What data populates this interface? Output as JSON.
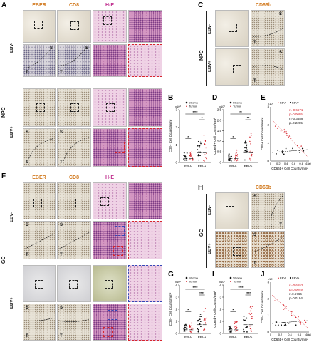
{
  "panels": {
    "A": {
      "letter": "A",
      "stains": [
        "EBER",
        "CD8",
        "H-E"
      ],
      "group": "NPC",
      "rows": [
        "EBV-",
        "EBV+"
      ]
    },
    "B": {
      "letter": "B",
      "ylabel": "CD8+ Cell Counts/mm²",
      "yexp": "x10³",
      "yticks": [
        "0",
        "1",
        "2",
        "3"
      ],
      "xcats": [
        "EBV-",
        "EBV+"
      ],
      "legend": [
        "Stroma",
        "Tumor"
      ],
      "sig": [
        "*",
        "****",
        "*"
      ]
    },
    "C": {
      "letter": "C",
      "stain": "CD66b",
      "group": "NPC",
      "rows": [
        "EBV-",
        "EBV+"
      ]
    },
    "D": {
      "letter": "D",
      "ylabel": "CD66b+ Cell Counts/mm²",
      "yexp": "x10²",
      "yticks": [
        "0",
        "0.5",
        "1.0",
        "1.5",
        "2.0",
        "2.5"
      ],
      "xcats": [
        "EBV-",
        "EBV+"
      ],
      "legend": [
        "Stroma",
        "Tumor"
      ],
      "sig": [
        "*",
        "**",
        "**"
      ]
    },
    "E": {
      "letter": "E",
      "ylabel": "CD8+ Cell Counts/mm²",
      "xlabel": "CD66b+ Cell Counts/mm²",
      "yexp": "x10³",
      "xexp": "x10²",
      "legend": [
        "EBV-",
        "EBV+"
      ],
      "yticks": [
        "0",
        "1",
        "2",
        "3"
      ],
      "xticks": [
        "0",
        "0.2",
        "0.4",
        "0.6",
        "0.8",
        "1.0"
      ],
      "stats": [
        {
          "text": "r=-0.6671",
          "color": "#d7262e"
        },
        {
          "text": "p=0.0095",
          "color": "#d7262e"
        },
        {
          "text": "r=-0.3589",
          "color": "#111111"
        },
        {
          "text": "p=0.2285",
          "color": "#111111"
        }
      ]
    },
    "F": {
      "letter": "F",
      "stains": [
        "EBER",
        "CD8",
        "H-E"
      ],
      "group": "GC",
      "rows": [
        "EBV-",
        "EBV+"
      ]
    },
    "G": {
      "letter": "G",
      "ylabel": "CD8+ Cell Counts/mm²",
      "yexp": "x10³",
      "yticks": [
        "0",
        "1",
        "2",
        "3",
        "4"
      ],
      "xcats": [
        "EBV-",
        "EBV+"
      ],
      "legend": [
        "Stroma",
        "Tumor"
      ],
      "sig": [
        "*",
        "****",
        "****"
      ]
    },
    "H": {
      "letter": "H",
      "stain": "CD66b",
      "group": "GC",
      "rows": [
        "EBV-",
        "EBV+"
      ]
    },
    "I": {
      "letter": "I",
      "ylabel": "CD66b+ Cell Counts/mm²",
      "yexp": "x10²",
      "yticks": [
        "0",
        "1",
        "2",
        "3",
        "4"
      ],
      "xcats": [
        "EBV-",
        "EBV+"
      ],
      "legend": [
        "Stroma",
        "Tumor"
      ],
      "sig": [
        "*",
        "****",
        "****"
      ]
    },
    "J": {
      "letter": "J",
      "ylabel": "CD8+ Cell Counts/mm²",
      "xlabel": "CD66b+ Cell Counts/mm²",
      "yexp": "x10³",
      "xexp": "x10²",
      "legend": [
        "EBV-",
        "EBV+"
      ],
      "yticks": [
        "0",
        "1",
        "2",
        "3"
      ],
      "xticks": [
        "0",
        "0.2",
        "0.4",
        "0.6",
        "0.8"
      ],
      "stats": [
        {
          "text": "r=-0.6652",
          "color": "#d7262e"
        },
        {
          "text": "p=0.0049",
          "color": "#d7262e"
        },
        {
          "text": "r=0.5766",
          "color": "#111111"
        },
        {
          "text": "p=0.0194",
          "color": "#111111"
        }
      ]
    }
  },
  "region_labels": {
    "stroma": "S",
    "tumor": "T"
  },
  "colors": {
    "ebv_pos": "#d7262e",
    "ebv_neg": "#111111",
    "orange_label": "#d27a1f",
    "purple_label": "#c0308f"
  }
}
